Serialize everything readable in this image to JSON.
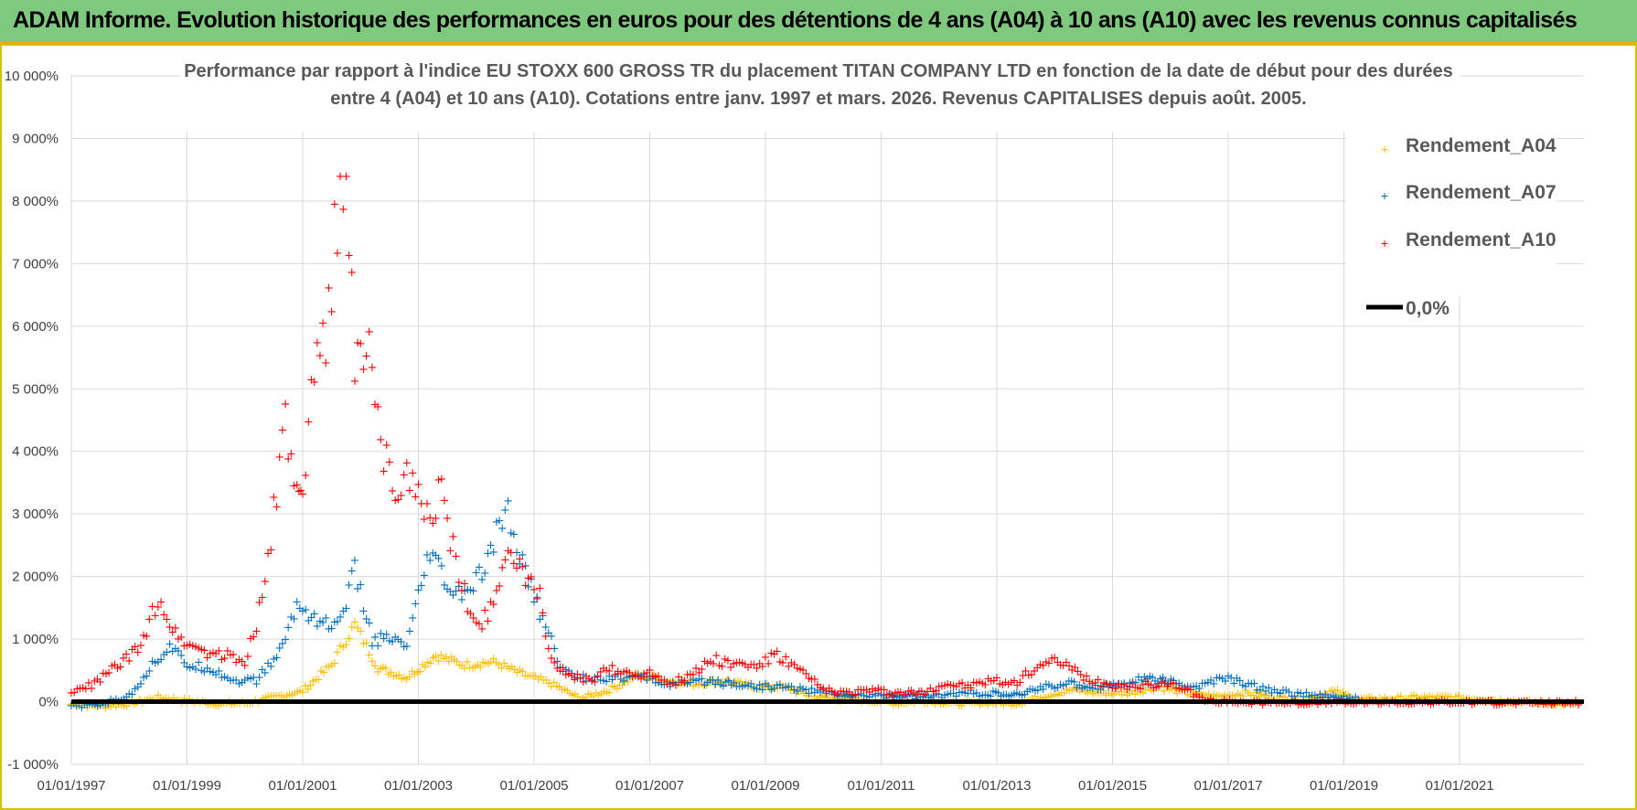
{
  "header": {
    "banner": "ADAM Informe. Evolution historique des performances en euros pour des détentions de 4 ans (A04) à 10 ans (A10) avec les revenus connus capitalisés"
  },
  "colors": {
    "A04": "#ffc000",
    "A07": "#0070c0",
    "A10": "#ff0000",
    "zero": "#000000",
    "grid": "#d9d9d9"
  },
  "chart_data": {
    "type": "scatter",
    "title_lines": [
      "Performance par rapport à l'indice EU STOXX 600 GROSS TR  du placement TITAN COMPANY LTD en fonction de la date de début pour des durées",
      "entre 4 (A04) et 10 ans (A10). Cotations entre janv. 1997 et mars. 2026. Revenus CAPITALISES depuis août. 2005."
    ],
    "ylim": [
      -1000,
      10000
    ],
    "xlim": [
      1997.0,
      2023.15
    ],
    "y_ticks": [
      {
        "value": -1000,
        "label": "-1 000%"
      },
      {
        "value": 0,
        "label": "0%"
      },
      {
        "value": 1000,
        "label": "1 000%"
      },
      {
        "value": 2000,
        "label": "2 000%"
      },
      {
        "value": 3000,
        "label": "3 000%"
      },
      {
        "value": 4000,
        "label": "4 000%"
      },
      {
        "value": 5000,
        "label": "5 000%"
      },
      {
        "value": 6000,
        "label": "6 000%"
      },
      {
        "value": 7000,
        "label": "7 000%"
      },
      {
        "value": 8000,
        "label": "8 000%"
      },
      {
        "value": 9000,
        "label": "9 000%"
      },
      {
        "value": 10000,
        "label": "10 000%"
      }
    ],
    "x_ticks": [
      {
        "value": 1997,
        "label": "01/01/1997"
      },
      {
        "value": 1999,
        "label": "01/01/1999"
      },
      {
        "value": 2001,
        "label": "01/01/2001"
      },
      {
        "value": 2003,
        "label": "01/01/2003"
      },
      {
        "value": 2005,
        "label": "01/01/2005"
      },
      {
        "value": 2007,
        "label": "01/01/2007"
      },
      {
        "value": 2009,
        "label": "01/01/2009"
      },
      {
        "value": 2011,
        "label": "01/01/2011"
      },
      {
        "value": 2013,
        "label": "01/01/2013"
      },
      {
        "value": 2015,
        "label": "01/01/2015"
      },
      {
        "value": 2017,
        "label": "01/01/2017"
      },
      {
        "value": 2019,
        "label": "01/01/2019"
      },
      {
        "value": 2021,
        "label": "01/01/2021"
      }
    ],
    "legend_position": "top-right",
    "zero_line": {
      "name": "0,0%",
      "y": 0
    },
    "series": [
      {
        "name": "Rendement_A04",
        "color_key": "A04",
        "points": [
          [
            1997.0,
            -30
          ],
          [
            1997.5,
            -60
          ],
          [
            1998.0,
            -20
          ],
          [
            1998.5,
            80
          ],
          [
            1999.0,
            30
          ],
          [
            1999.5,
            -20
          ],
          [
            2000.0,
            -10
          ],
          [
            2000.5,
            80
          ],
          [
            2001.0,
            180
          ],
          [
            2001.5,
            600
          ],
          [
            2001.9,
            1250
          ],
          [
            2002.3,
            550
          ],
          [
            2002.8,
            400
          ],
          [
            2003.3,
            750
          ],
          [
            2003.8,
            600
          ],
          [
            2004.3,
            650
          ],
          [
            2004.8,
            450
          ],
          [
            2005.3,
            300
          ],
          [
            2005.8,
            60
          ],
          [
            2006.3,
            200
          ],
          [
            2006.8,
            450
          ],
          [
            2007.3,
            350
          ],
          [
            2007.8,
            300
          ],
          [
            2008.3,
            350
          ],
          [
            2008.8,
            250
          ],
          [
            2009.3,
            250
          ],
          [
            2009.8,
            100
          ],
          [
            2010.3,
            50
          ],
          [
            2010.8,
            30
          ],
          [
            2011.3,
            -10
          ],
          [
            2011.8,
            30
          ],
          [
            2012.3,
            -20
          ],
          [
            2012.8,
            0
          ],
          [
            2013.3,
            -20
          ],
          [
            2013.8,
            100
          ],
          [
            2014.3,
            200
          ],
          [
            2014.8,
            150
          ],
          [
            2015.3,
            150
          ],
          [
            2015.8,
            250
          ],
          [
            2016.3,
            150
          ],
          [
            2016.8,
            100
          ],
          [
            2017.3,
            150
          ],
          [
            2017.8,
            80
          ],
          [
            2018.3,
            50
          ],
          [
            2018.8,
            180
          ],
          [
            2019.3,
            50
          ],
          [
            2019.8,
            60
          ],
          [
            2020.3,
            80
          ],
          [
            2020.8,
            80
          ],
          [
            2021.3,
            60
          ],
          [
            2021.8,
            30
          ],
          [
            2022.3,
            0
          ],
          [
            2022.8,
            -20
          ],
          [
            2023.1,
            -10
          ]
        ]
      },
      {
        "name": "Rendement_A07",
        "color_key": "A07",
        "points": [
          [
            1997.0,
            -50
          ],
          [
            1997.5,
            -30
          ],
          [
            1998.0,
            100
          ],
          [
            1998.4,
            600
          ],
          [
            1998.7,
            900
          ],
          [
            1999.0,
            600
          ],
          [
            1999.4,
            550
          ],
          [
            1999.8,
            350
          ],
          [
            2000.2,
            350
          ],
          [
            2000.6,
            800
          ],
          [
            2000.9,
            1550
          ],
          [
            2001.3,
            1300
          ],
          [
            2001.6,
            1200
          ],
          [
            2001.9,
            2100
          ],
          [
            2002.2,
            1000
          ],
          [
            2002.5,
            1000
          ],
          [
            2002.8,
            900
          ],
          [
            2003.2,
            2400
          ],
          [
            2003.6,
            1700
          ],
          [
            2003.9,
            1800
          ],
          [
            2004.2,
            2200
          ],
          [
            2004.5,
            3150
          ],
          [
            2004.8,
            2200
          ],
          [
            2005.2,
            1200
          ],
          [
            2005.5,
            500
          ],
          [
            2005.8,
            400
          ],
          [
            2006.2,
            400
          ],
          [
            2006.6,
            400
          ],
          [
            2006.9,
            400
          ],
          [
            2007.3,
            300
          ],
          [
            2007.6,
            300
          ],
          [
            2008.0,
            350
          ],
          [
            2008.5,
            300
          ],
          [
            2008.9,
            250
          ],
          [
            2009.3,
            250
          ],
          [
            2009.7,
            200
          ],
          [
            2010.1,
            150
          ],
          [
            2010.6,
            100
          ],
          [
            2011.0,
            120
          ],
          [
            2011.5,
            100
          ],
          [
            2012.0,
            100
          ],
          [
            2012.4,
            150
          ],
          [
            2012.8,
            150
          ],
          [
            2013.3,
            100
          ],
          [
            2013.8,
            250
          ],
          [
            2014.2,
            300
          ],
          [
            2014.7,
            250
          ],
          [
            2015.2,
            300
          ],
          [
            2015.6,
            400
          ],
          [
            2016.1,
            300
          ],
          [
            2016.5,
            250
          ],
          [
            2016.9,
            400
          ],
          [
            2017.3,
            300
          ],
          [
            2017.7,
            200
          ],
          [
            2018.1,
            150
          ],
          [
            2018.5,
            100
          ],
          [
            2019.0,
            80
          ],
          [
            2019.3,
            40
          ]
        ]
      },
      {
        "name": "Rendement_A10",
        "color_key": "A10",
        "points": [
          [
            1997.0,
            150
          ],
          [
            1997.4,
            300
          ],
          [
            1997.8,
            600
          ],
          [
            1998.2,
            850
          ],
          [
            1998.5,
            1700
          ],
          [
            1998.8,
            1100
          ],
          [
            1999.1,
            900
          ],
          [
            1999.4,
            800
          ],
          [
            1999.7,
            750
          ],
          [
            2000.0,
            650
          ],
          [
            2000.3,
            1600
          ],
          [
            2000.5,
            3000
          ],
          [
            2000.7,
            4400
          ],
          [
            2000.9,
            3300
          ],
          [
            2001.0,
            3100
          ],
          [
            2001.2,
            5300
          ],
          [
            2001.4,
            6000
          ],
          [
            2001.6,
            7700
          ],
          [
            2001.75,
            8800
          ],
          [
            2001.9,
            5200
          ],
          [
            2002.1,
            6000
          ],
          [
            2002.3,
            4500
          ],
          [
            2002.6,
            3000
          ],
          [
            2002.9,
            3800
          ],
          [
            2003.1,
            2800
          ],
          [
            2003.4,
            3400
          ],
          [
            2003.7,
            2000
          ],
          [
            2004.0,
            1200
          ],
          [
            2004.3,
            1600
          ],
          [
            2004.5,
            2500
          ],
          [
            2004.8,
            2000
          ],
          [
            2005.1,
            1700
          ],
          [
            2005.3,
            700
          ],
          [
            2005.6,
            400
          ],
          [
            2006.0,
            350
          ],
          [
            2006.3,
            550
          ],
          [
            2006.7,
            450
          ],
          [
            2007.1,
            450
          ],
          [
            2007.4,
            300
          ],
          [
            2007.8,
            500
          ],
          [
            2008.1,
            700
          ],
          [
            2008.5,
            600
          ],
          [
            2008.9,
            600
          ],
          [
            2009.2,
            750
          ],
          [
            2009.6,
            500
          ],
          [
            2010.0,
            200
          ],
          [
            2010.4,
            150
          ],
          [
            2010.8,
            200
          ],
          [
            2011.2,
            150
          ],
          [
            2011.7,
            150
          ],
          [
            2012.1,
            300
          ],
          [
            2012.5,
            250
          ],
          [
            2012.9,
            350
          ],
          [
            2013.3,
            300
          ],
          [
            2013.7,
            600
          ],
          [
            2014.1,
            650
          ],
          [
            2014.5,
            400
          ],
          [
            2014.9,
            300
          ],
          [
            2015.3,
            250
          ],
          [
            2015.8,
            300
          ],
          [
            2016.2,
            250
          ],
          [
            2016.6,
            30
          ],
          [
            2017.5,
            0
          ],
          [
            2018.5,
            0
          ],
          [
            2019.5,
            0
          ],
          [
            2020.5,
            0
          ],
          [
            2021.5,
            0
          ],
          [
            2022.5,
            0
          ],
          [
            2023.1,
            0
          ]
        ]
      }
    ]
  }
}
